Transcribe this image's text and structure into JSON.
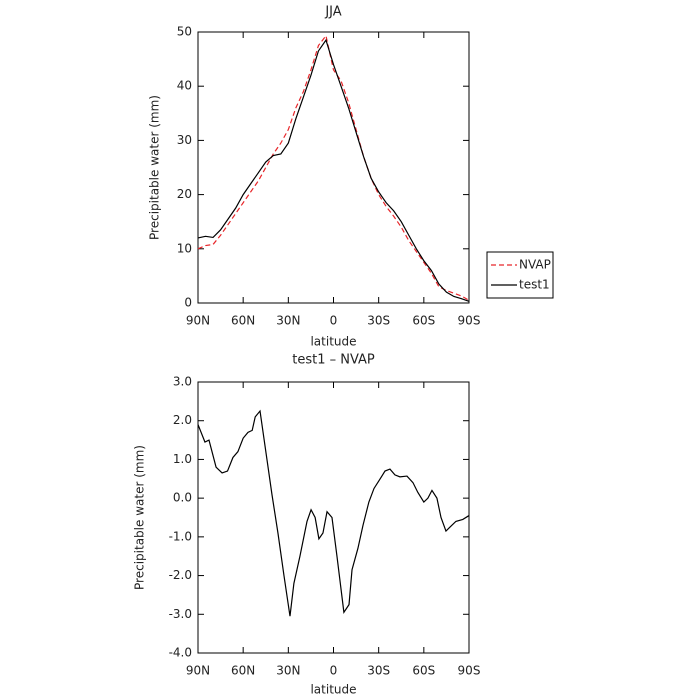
{
  "chart_data": [
    {
      "type": "line",
      "title": "JJA",
      "xlabel": "latitude",
      "ylabel": "Precipitable water (mm)",
      "x": [
        90,
        85,
        80,
        75,
        70,
        65,
        60,
        55,
        50,
        45,
        40,
        35,
        30,
        25,
        20,
        15,
        10,
        5,
        0,
        -5,
        -10,
        -15,
        -20,
        -25,
        -30,
        -35,
        -40,
        -45,
        -50,
        -55,
        -60,
        -65,
        -70,
        -75,
        -80,
        -85,
        -90
      ],
      "series": [
        {
          "name": "NVAP",
          "color": "#e8262a",
          "linestyle": "dashed",
          "values": [
            10,
            10.6,
            10.8,
            12.5,
            14.5,
            16.5,
            18.5,
            20.5,
            22.5,
            25,
            27.5,
            29.5,
            32,
            36,
            39,
            43,
            47.5,
            49.3,
            43,
            41,
            37,
            32,
            27,
            23,
            20,
            17.8,
            16,
            14,
            11.5,
            9.5,
            7.5,
            5.5,
            3,
            2.3,
            1.8,
            1.3,
            0.5
          ]
        },
        {
          "name": "test1",
          "color": "#000000",
          "linestyle": "solid",
          "values": [
            12,
            12.3,
            12.1,
            13.5,
            15.5,
            17.5,
            20,
            22,
            24,
            26,
            27.2,
            27.5,
            29.5,
            34,
            38,
            42,
            46.5,
            48.5,
            44,
            40,
            36,
            31.5,
            27,
            23,
            20.5,
            18.5,
            17,
            15,
            12.5,
            10,
            7.8,
            6,
            3.5,
            2,
            1.2,
            0.8,
            0.3
          ]
        }
      ],
      "xlim": [
        90,
        -90
      ],
      "xticks": [
        {
          "value": 90,
          "label": "90N"
        },
        {
          "value": 60,
          "label": "60N"
        },
        {
          "value": 30,
          "label": "30N"
        },
        0,
        {
          "value": -30,
          "label": "30S"
        },
        {
          "value": -60,
          "label": "60S"
        },
        {
          "value": -90,
          "label": "90S"
        }
      ],
      "ylim": [
        0,
        50
      ],
      "yticks": [
        0,
        10,
        20,
        30,
        40,
        50
      ],
      "legend": "right"
    },
    {
      "type": "line",
      "title": "test1 – NVAP",
      "xlabel": "latitude",
      "ylabel": "Precipitable water (mm)",
      "x": [
        90,
        85.4,
        82.7,
        78,
        74,
        70.4,
        66.8,
        63.5,
        60,
        56.8,
        54,
        52,
        48.8,
        44.2,
        40.9,
        36.9,
        32.9,
        28.9,
        26.3,
        22.3,
        17.6,
        14.9,
        12.2,
        9.7,
        7,
        4.3,
        1,
        -2.3,
        -6.9,
        -10.3,
        -12.3,
        -16.2,
        -19.6,
        -23.5,
        -26.9,
        -30.2,
        -34.2,
        -37.5,
        -40.8,
        -44.1,
        -48.8,
        -52.8,
        -56,
        -60,
        -62.7,
        -65.4,
        -68.7,
        -71.4,
        -74.7,
        -77.3,
        -81.3,
        -85.9,
        -90
      ],
      "values": [
        1.9,
        1.45,
        1.5,
        0.8,
        0.65,
        0.7,
        1.05,
        1.2,
        1.55,
        1.7,
        1.75,
        2.1,
        2.25,
        1.0,
        0.1,
        -0.9,
        -2.0,
        -3.05,
        -2.2,
        -1.5,
        -0.6,
        -0.3,
        -0.5,
        -1.05,
        -0.9,
        -0.35,
        -0.5,
        -1.5,
        -2.95,
        -2.75,
        -1.85,
        -1.3,
        -0.7,
        -0.1,
        0.25,
        0.45,
        0.7,
        0.75,
        0.6,
        0.55,
        0.57,
        0.4,
        0.15,
        -0.1,
        0,
        0.2,
        0,
        -0.5,
        -0.85,
        -0.75,
        -0.6,
        -0.55,
        -0.45
      ],
      "color": "#000000",
      "xlim": [
        90,
        -90
      ],
      "xticks": [
        {
          "value": 90,
          "label": "90N"
        },
        {
          "value": 60,
          "label": "60N"
        },
        {
          "value": 30,
          "label": "30N"
        },
        0,
        {
          "value": -30,
          "label": "30S"
        },
        {
          "value": -60,
          "label": "60S"
        },
        {
          "value": -90,
          "label": "90S"
        }
      ],
      "ylim": [
        -4,
        3
      ],
      "yticks": [
        {
          "value": -4,
          "label": "-4.0"
        },
        {
          "value": -3,
          "label": "-3.0"
        },
        {
          "value": -2,
          "label": "-2.0"
        },
        {
          "value": -1,
          "label": "-1.0"
        },
        {
          "value": 0,
          "label": "0.0"
        },
        {
          "value": 1,
          "label": "1.0"
        },
        {
          "value": 2,
          "label": "2.0"
        },
        {
          "value": 3,
          "label": "3.0"
        }
      ]
    }
  ]
}
